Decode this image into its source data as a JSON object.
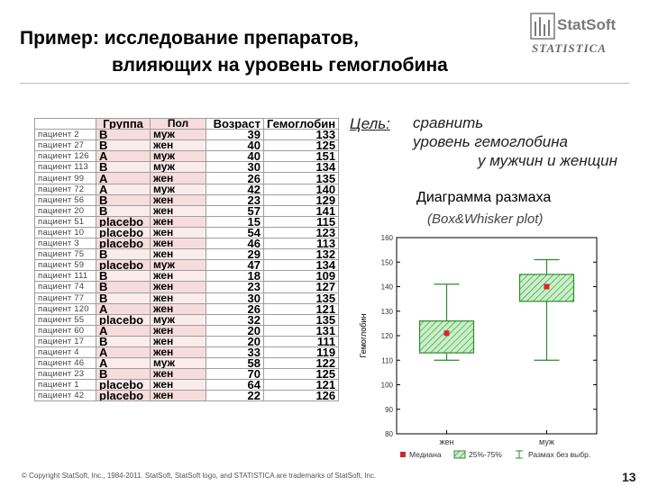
{
  "slide": {
    "title_line1": "Пример: исследование препаратов,",
    "title_line2": "влияющих на уровень гемоглобина",
    "goal_label": "Цель:",
    "goal_lines": [
      "сравнить",
      "уровень гемоглобина",
      "у мужчин и женщин"
    ],
    "chart_title": "Диаграмма размаха",
    "chart_subtitle": "(Box&Whisker plot)",
    "footer": "© Copyright StatSoft, Inc., 1984-2011. StatSoft, StatSoft logo, and STATISTICA are trademarks of StatSoft, Inc.",
    "page_number": "13"
  },
  "logo": {
    "brand": "StatSoft",
    "product": "STATISTICA",
    "icon": "statsoft-logo-icon"
  },
  "table": {
    "headers": [
      "Группа",
      "Пол",
      "Возраст",
      "Гемоглобин"
    ],
    "rows": [
      [
        "пациент 2",
        "B",
        "муж",
        "39",
        "133"
      ],
      [
        "пациент 27",
        "B",
        "жен",
        "40",
        "125"
      ],
      [
        "пациент 126",
        "A",
        "муж",
        "40",
        "151"
      ],
      [
        "пациент 113",
        "B",
        "муж",
        "30",
        "134"
      ],
      [
        "пациент 99",
        "A",
        "жен",
        "26",
        "135"
      ],
      [
        "пациент 72",
        "A",
        "муж",
        "42",
        "140"
      ],
      [
        "пациент 56",
        "B",
        "жен",
        "23",
        "129"
      ],
      [
        "пациент 20",
        "B",
        "жен",
        "57",
        "141"
      ],
      [
        "пациент 51",
        "placebo",
        "жен",
        "15",
        "115"
      ],
      [
        "пациент 10",
        "placebo",
        "жен",
        "54",
        "123"
      ],
      [
        "пациент 3",
        "placebo",
        "жен",
        "46",
        "113"
      ],
      [
        "пациент 75",
        "B",
        "жен",
        "29",
        "132"
      ],
      [
        "пациент 59",
        "placebo",
        "муж",
        "47",
        "134"
      ],
      [
        "пациент 111",
        "B",
        "жен",
        "18",
        "109"
      ],
      [
        "пациент 74",
        "B",
        "жен",
        "23",
        "127"
      ],
      [
        "пациент 77",
        "B",
        "жен",
        "30",
        "135"
      ],
      [
        "пациент 120",
        "A",
        "жен",
        "26",
        "121"
      ],
      [
        "пациент 55",
        "placebo",
        "муж",
        "32",
        "135"
      ],
      [
        "пациент 60",
        "A",
        "жен",
        "20",
        "131"
      ],
      [
        "пациент 17",
        "B",
        "жен",
        "20",
        "111"
      ],
      [
        "пациент 4",
        "A",
        "жен",
        "33",
        "119"
      ],
      [
        "пациент 46",
        "A",
        "муж",
        "58",
        "122"
      ],
      [
        "пациент 23",
        "B",
        "жен",
        "70",
        "125"
      ],
      [
        "пациент 1",
        "placebo",
        "жен",
        "64",
        "121"
      ],
      [
        "пациент 42",
        "placebo",
        "жен",
        "22",
        "126"
      ]
    ]
  },
  "chart_data": {
    "type": "boxplot",
    "title": "",
    "xlabel": "",
    "ylabel": "Гемоглобин",
    "ylim": [
      80,
      160
    ],
    "yticks": [
      80,
      90,
      100,
      110,
      120,
      130,
      140,
      150,
      160
    ],
    "grid": false,
    "categories": [
      "жен",
      "муж"
    ],
    "boxes": [
      {
        "category": "жен",
        "median": 121,
        "q1": 113,
        "q3": 126,
        "whisker_low": 110,
        "whisker_high": 141
      },
      {
        "category": "муж",
        "median": 140,
        "q1": 134,
        "q3": 145,
        "whisker_low": 110,
        "whisker_high": 151
      }
    ],
    "legend": [
      "Медиана",
      "25%-75%",
      "Размах без выбр."
    ],
    "legend_position": "bottom",
    "colors": {
      "median": "#d6262c",
      "box_fill": "#c9f0c9",
      "box_stroke": "#2f8a2f"
    }
  }
}
